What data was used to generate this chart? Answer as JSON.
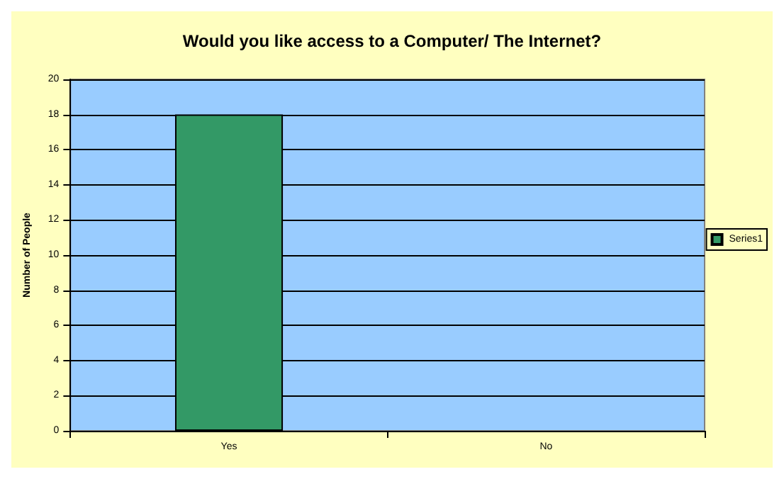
{
  "chart_data": {
    "type": "bar",
    "title": "Would you like access to a Computer/ The Internet?",
    "ylabel": "Number of People",
    "categories": [
      "Yes",
      "No"
    ],
    "series": [
      {
        "name": "Series1",
        "color": "#339966",
        "values": [
          18,
          0
        ]
      }
    ],
    "ylim": [
      0,
      20
    ],
    "yticks": [
      0,
      2,
      4,
      6,
      8,
      10,
      12,
      14,
      16,
      18,
      20
    ],
    "grid": "y",
    "legend": "right"
  }
}
